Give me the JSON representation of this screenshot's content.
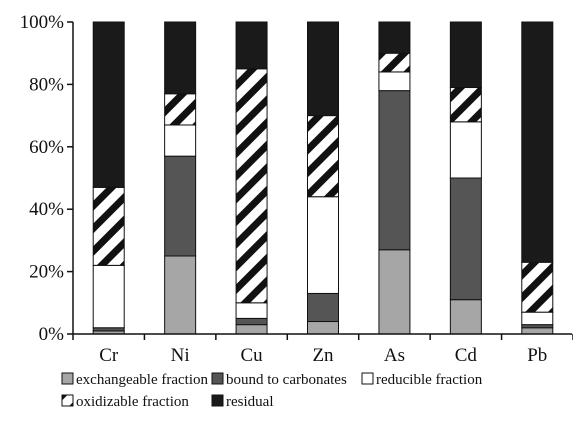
{
  "chart_data": {
    "type": "bar",
    "stacked": true,
    "percent_stacked": true,
    "categories": [
      "Cr",
      "Ni",
      "Cu",
      "Zn",
      "As",
      "Cd",
      "Pb"
    ],
    "series": [
      {
        "name": "exchangeable fraction",
        "color": "#a6a6a6",
        "values": [
          1,
          25,
          3,
          4,
          27,
          11,
          2
        ]
      },
      {
        "name": "bound to carbonates",
        "color": "#555555",
        "values": [
          1,
          32,
          2,
          9,
          51,
          39,
          1
        ]
      },
      {
        "name": "reducible fraction",
        "color": "#ffffff",
        "values": [
          20,
          10,
          5,
          31,
          6,
          18,
          4
        ]
      },
      {
        "name": "oxidizable fraction",
        "color": "pattern-black-white-diagonal",
        "values": [
          25,
          10,
          75,
          26,
          6,
          11,
          16
        ]
      },
      {
        "name": "residual",
        "color": "#1a1a1a",
        "values": [
          53,
          23,
          15,
          30,
          10,
          21,
          77
        ]
      }
    ],
    "y_ticks": [
      "0%",
      "20%",
      "40%",
      "60%",
      "80%",
      "100%"
    ],
    "ylim": [
      0,
      100
    ],
    "legend_position": "bottom",
    "grid": false,
    "title": "",
    "xlabel": "",
    "ylabel": ""
  }
}
